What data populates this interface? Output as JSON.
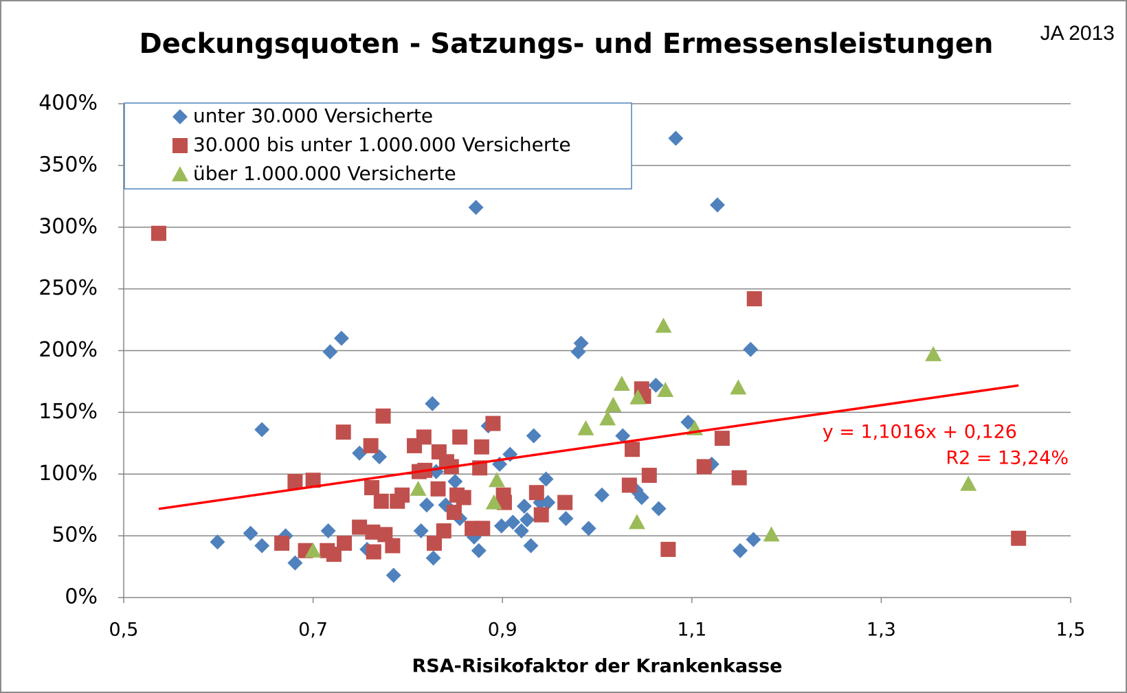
{
  "chart_data": {
    "type": "scatter",
    "title": "Deckungsquoten - Satzungs- und Ermessensleistungen",
    "subtitle": "JA 2013",
    "x_label": "RSA-Risikofaktor der Krankenkasse",
    "xlim": [
      0.5,
      1.5
    ],
    "xticks": [
      {
        "value": 0.5,
        "label": "0,5"
      },
      {
        "value": 0.7,
        "label": "0,7"
      },
      {
        "value": 0.9,
        "label": "0,9"
      },
      {
        "value": 1.1,
        "label": "1,1"
      },
      {
        "value": 1.3,
        "label": "1,3"
      },
      {
        "value": 1.5,
        "label": "1,5"
      }
    ],
    "ylim": [
      0,
      400
    ],
    "yticks": [
      {
        "value": 0,
        "label": "0%"
      },
      {
        "value": 50,
        "label": "50%"
      },
      {
        "value": 100,
        "label": "100%"
      },
      {
        "value": 150,
        "label": "150%"
      },
      {
        "value": 200,
        "label": "200%"
      },
      {
        "value": 250,
        "label": "250%"
      },
      {
        "value": 300,
        "label": "300%"
      },
      {
        "value": 350,
        "label": "350%"
      },
      {
        "value": 400,
        "label": "400%"
      }
    ],
    "grid": true,
    "legend": "top-left",
    "series": [
      {
        "name": "unter 30.000 Versicherte",
        "color": "#4f81bd",
        "marker": "diamond",
        "x": [
          0.599,
          0.634,
          0.646,
          0.646,
          0.671,
          0.681,
          0.716,
          0.718,
          0.73,
          0.749,
          0.757,
          0.77,
          0.785,
          0.814,
          0.82,
          0.826,
          0.827,
          0.83,
          0.84,
          0.85,
          0.855,
          0.87,
          0.872,
          0.875,
          0.885,
          0.897,
          0.899,
          0.908,
          0.911,
          0.92,
          0.923,
          0.926,
          0.93,
          0.933,
          0.94,
          0.946,
          0.948,
          0.967,
          0.98,
          0.983,
          0.991,
          1.005,
          1.027,
          1.041,
          1.047,
          1.062,
          1.065,
          1.083,
          1.096,
          1.121,
          1.127,
          1.151,
          1.162,
          1.165
        ],
        "values": [
          45,
          52,
          136,
          42,
          50,
          28,
          54,
          199,
          210,
          117,
          39,
          114,
          18,
          54,
          75,
          157,
          32,
          102,
          75,
          94,
          64,
          49,
          316,
          38,
          139,
          108,
          58,
          116,
          61,
          54,
          74,
          63,
          42,
          131,
          77,
          96,
          77,
          64,
          199,
          206,
          56,
          83,
          131,
          87,
          81,
          172,
          72,
          372,
          142,
          108,
          318,
          38,
          201,
          47
        ]
      },
      {
        "name": "30.000 bis unter 1.000.000 Versicherte",
        "color": "#c0504d",
        "marker": "square",
        "x": [
          0.537,
          0.667,
          0.681,
          0.692,
          0.7,
          0.715,
          0.722,
          0.733,
          0.732,
          0.749,
          0.761,
          0.762,
          0.763,
          0.764,
          0.772,
          0.774,
          0.776,
          0.784,
          0.789,
          0.794,
          0.807,
          0.812,
          0.817,
          0.818,
          0.828,
          0.832,
          0.833,
          0.838,
          0.841,
          0.846,
          0.849,
          0.852,
          0.855,
          0.859,
          0.868,
          0.876,
          0.878,
          0.879,
          0.89,
          0.901,
          0.902,
          0.936,
          0.941,
          0.966,
          1.034,
          1.037,
          1.047,
          1.049,
          1.055,
          1.075,
          1.113,
          1.132,
          1.15,
          1.166,
          1.445
        ],
        "values": [
          295,
          44,
          94,
          38,
          95,
          38,
          35,
          44,
          134,
          57,
          123,
          89,
          53,
          37,
          78,
          147,
          51,
          42,
          78,
          83,
          123,
          102,
          130,
          103,
          44,
          88,
          118,
          54,
          110,
          106,
          69,
          83,
          130,
          81,
          56,
          105,
          122,
          56,
          141,
          83,
          77,
          85,
          67,
          77,
          91,
          120,
          169,
          163,
          99,
          39,
          106,
          129,
          97,
          242,
          48
        ]
      },
      {
        "name": "über 1.000.000 Versicherte",
        "color": "#9bbb59",
        "marker": "triangle",
        "x": [
          0.7,
          0.811,
          0.891,
          0.894,
          0.988,
          1.011,
          1.017,
          1.026,
          1.042,
          1.043,
          1.07,
          1.072,
          1.103,
          1.149,
          1.184,
          1.355,
          1.392
        ],
        "values": [
          38,
          88,
          77,
          95,
          137,
          145,
          156,
          173,
          61,
          162,
          220,
          168,
          137,
          170,
          51,
          197,
          92
        ]
      }
    ],
    "trendline": {
      "x": [
        0.537,
        1.445
      ],
      "values": [
        71.8,
        171.8
      ],
      "color": "#ff0000"
    },
    "annotations": [
      "y = 1,1016x + 0,126",
      "R2 = 13,24%"
    ]
  }
}
